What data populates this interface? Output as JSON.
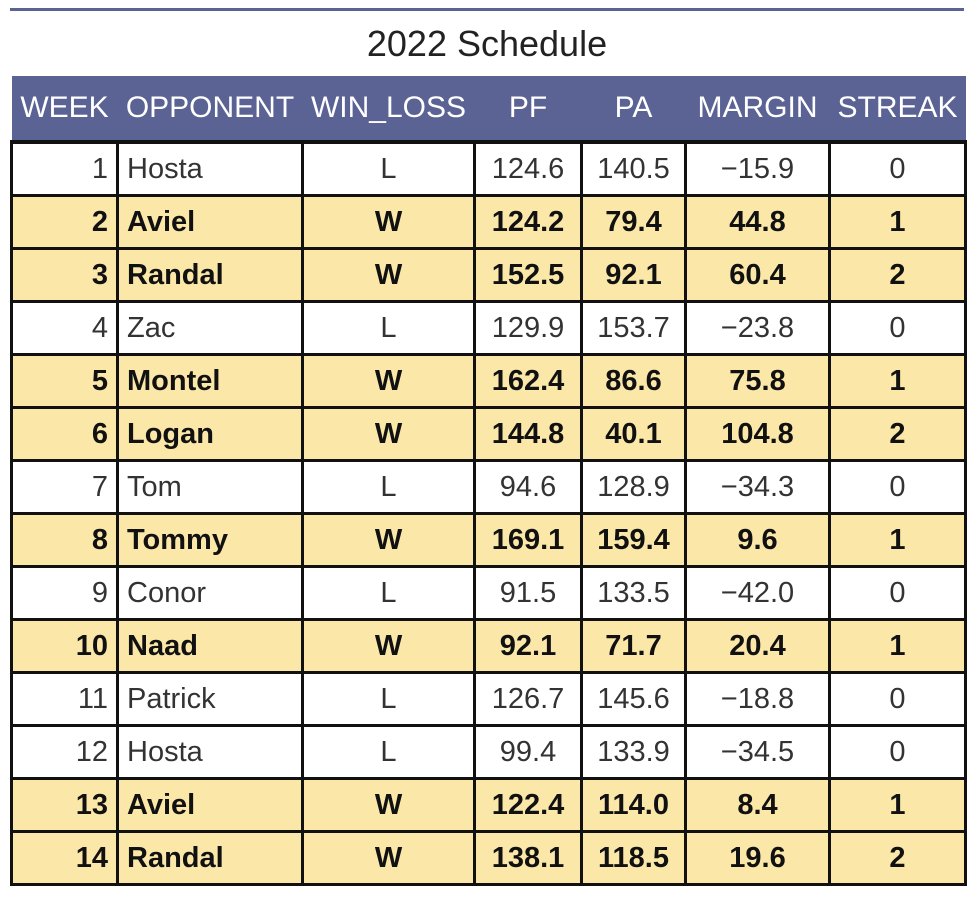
{
  "title": "2022 Schedule",
  "colors": {
    "header_bg": "#5b6395",
    "header_text": "#ffffff",
    "win_row_bg": "#fbe8a9",
    "loss_row_bg": "#ffffff",
    "grid": "#111111"
  },
  "columns": [
    "WEEK",
    "OPPONENT",
    "WIN_LOSS",
    "PF",
    "PA",
    "MARGIN",
    "STREAK"
  ],
  "rows": [
    {
      "week": "1",
      "opponent": "Hosta",
      "win_loss": "L",
      "pf": "124.6",
      "pa": "140.5",
      "margin": "−15.9",
      "streak": "0"
    },
    {
      "week": "2",
      "opponent": "Aviel",
      "win_loss": "W",
      "pf": "124.2",
      "pa": "79.4",
      "margin": "44.8",
      "streak": "1"
    },
    {
      "week": "3",
      "opponent": "Randal",
      "win_loss": "W",
      "pf": "152.5",
      "pa": "92.1",
      "margin": "60.4",
      "streak": "2"
    },
    {
      "week": "4",
      "opponent": "Zac",
      "win_loss": "L",
      "pf": "129.9",
      "pa": "153.7",
      "margin": "−23.8",
      "streak": "0"
    },
    {
      "week": "5",
      "opponent": "Montel",
      "win_loss": "W",
      "pf": "162.4",
      "pa": "86.6",
      "margin": "75.8",
      "streak": "1"
    },
    {
      "week": "6",
      "opponent": "Logan",
      "win_loss": "W",
      "pf": "144.8",
      "pa": "40.1",
      "margin": "104.8",
      "streak": "2"
    },
    {
      "week": "7",
      "opponent": "Tom",
      "win_loss": "L",
      "pf": "94.6",
      "pa": "128.9",
      "margin": "−34.3",
      "streak": "0"
    },
    {
      "week": "8",
      "opponent": "Tommy",
      "win_loss": "W",
      "pf": "169.1",
      "pa": "159.4",
      "margin": "9.6",
      "streak": "1"
    },
    {
      "week": "9",
      "opponent": "Conor",
      "win_loss": "L",
      "pf": "91.5",
      "pa": "133.5",
      "margin": "−42.0",
      "streak": "0"
    },
    {
      "week": "10",
      "opponent": "Naad",
      "win_loss": "W",
      "pf": "92.1",
      "pa": "71.7",
      "margin": "20.4",
      "streak": "1"
    },
    {
      "week": "11",
      "opponent": "Patrick",
      "win_loss": "L",
      "pf": "126.7",
      "pa": "145.6",
      "margin": "−18.8",
      "streak": "0"
    },
    {
      "week": "12",
      "opponent": "Hosta",
      "win_loss": "L",
      "pf": "99.4",
      "pa": "133.9",
      "margin": "−34.5",
      "streak": "0"
    },
    {
      "week": "13",
      "opponent": "Aviel",
      "win_loss": "W",
      "pf": "122.4",
      "pa": "114.0",
      "margin": "8.4",
      "streak": "1"
    },
    {
      "week": "14",
      "opponent": "Randal",
      "win_loss": "W",
      "pf": "138.1",
      "pa": "118.5",
      "margin": "19.6",
      "streak": "2"
    }
  ]
}
